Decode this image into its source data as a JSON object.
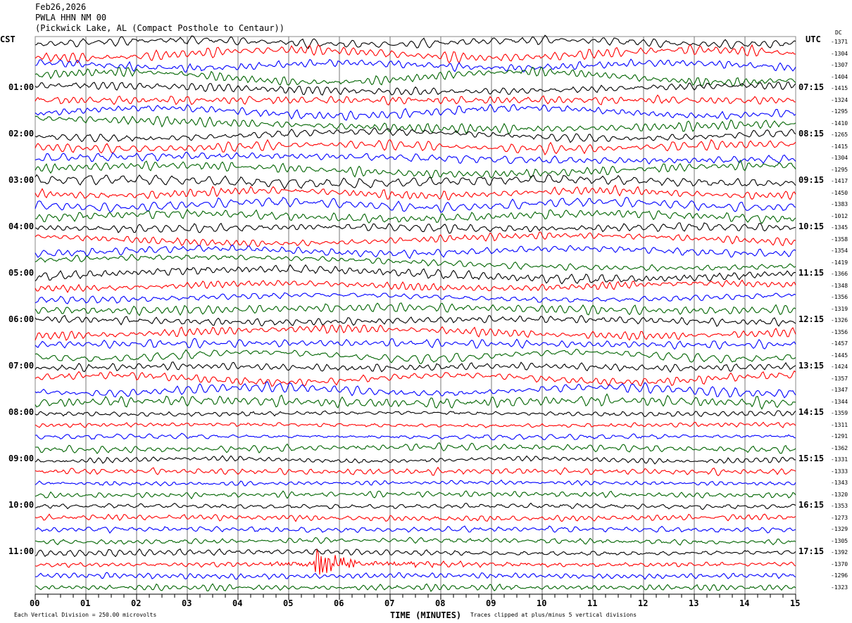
{
  "header": {
    "date": "Feb26,2026",
    "station": "PWLA HHN NM 00",
    "location": "(Pickwick Lake, AL (Compact Posthole to Centaur))"
  },
  "left_tz": "CST",
  "right_tz": "UTC",
  "dc_label": "DC",
  "footer": {
    "scale": "Each Vertical Division =  250.00 microvolts",
    "xlabel": "TIME (MINUTES)",
    "clip": "Traces clipped at plus/minus 5 vertical divisions"
  },
  "chart_data": {
    "type": "line",
    "title": "PWLA HHN NM 00 helicorder",
    "xlabel": "TIME (MINUTES)",
    "xlim": [
      0,
      15
    ],
    "x_ticks": [
      "00",
      "01",
      "02",
      "03",
      "04",
      "05",
      "06",
      "07",
      "08",
      "09",
      "10",
      "11",
      "12",
      "13",
      "14",
      "15"
    ],
    "left_labels": [
      "01:00",
      "02:00",
      "03:00",
      "04:00",
      "05:00",
      "06:00",
      "07:00",
      "08:00",
      "09:00",
      "10:00",
      "11:00"
    ],
    "right_labels": [
      "07:15",
      "08:15",
      "09:15",
      "10:15",
      "11:15",
      "12:15",
      "13:15",
      "14:15",
      "15:15",
      "16:15",
      "17:15"
    ],
    "trace_colors": [
      "#000000",
      "#ff0000",
      "#0000ff",
      "#006400"
    ],
    "trace_count": 48,
    "dc_values": [
      "-1371",
      "-1304",
      "-1307",
      "-1404",
      "-1415",
      "-1324",
      "-1295",
      "-1410",
      "-1265",
      "-1415",
      "-1304",
      "-1295",
      "-1417",
      "-1450",
      "-1383",
      "-1012",
      "-1345",
      "-1358",
      "-1354",
      "-1419",
      "-1366",
      "-1348",
      "-1356",
      "-1319",
      "-1326",
      "-1356",
      "-1457",
      "-1445",
      "-1424",
      "-1357",
      "-1347",
      "-1344",
      "-1359",
      "-1311",
      "-1291",
      "-1362",
      "-1331",
      "-1333",
      "-1343",
      "-1320",
      "-1353",
      "-1273",
      "-1329",
      "-1305",
      "-1392",
      "-1370",
      "-1296",
      "-1323"
    ],
    "event": {
      "trace_index": 45,
      "minute": 5.5
    }
  }
}
